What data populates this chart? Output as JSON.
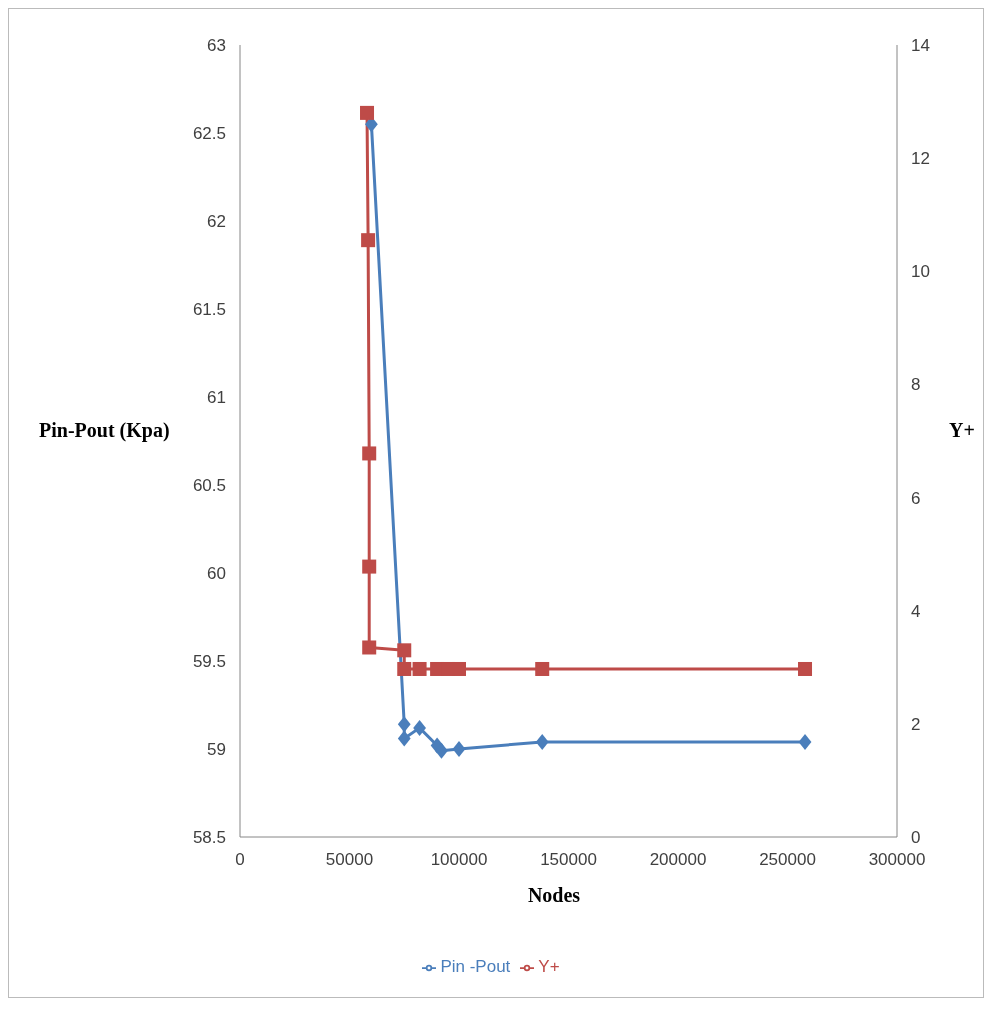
{
  "chart_data": {
    "type": "line",
    "xlabel": "Nodes",
    "ylabel": "Pin-Pout (Kpa)",
    "y2label": "Y+",
    "xlim": [
      0,
      300000
    ],
    "xticks": [
      0,
      50000,
      100000,
      150000,
      200000,
      250000,
      300000
    ],
    "ylim": [
      58.5,
      63
    ],
    "yticks": [
      58.5,
      59,
      59.5,
      60,
      60.5,
      61,
      61.5,
      62,
      62.5,
      63
    ],
    "y2lim": [
      0,
      14
    ],
    "y2ticks": [
      0,
      2,
      4,
      6,
      8,
      10,
      12,
      14
    ],
    "grid": false,
    "legend": "bottom",
    "line_style": "solid",
    "series": [
      {
        "name": "Pin -Pout",
        "color": "#4a7ebb",
        "marker": "diamond",
        "x": [
          60000,
          75000,
          75000,
          82000,
          90000,
          92000,
          100000,
          138000,
          258000
        ],
        "values": [
          62.55,
          59.14,
          59.06,
          59.12,
          59.02,
          58.99,
          59.0,
          59.04,
          59.04
        ]
      },
      {
        "name": "Y+",
        "color": "#be4b48",
        "marker": "square",
        "axis": "y2",
        "x": [
          58000,
          58500,
          59000,
          59000,
          59000,
          75000,
          75000,
          82000,
          90000,
          95000,
          100000,
          138000,
          258000
        ],
        "values": [
          12.8,
          10.55,
          6.78,
          4.78,
          3.35,
          3.3,
          2.97,
          2.97,
          2.97,
          2.97,
          2.97,
          2.97,
          2.97
        ]
      }
    ]
  }
}
